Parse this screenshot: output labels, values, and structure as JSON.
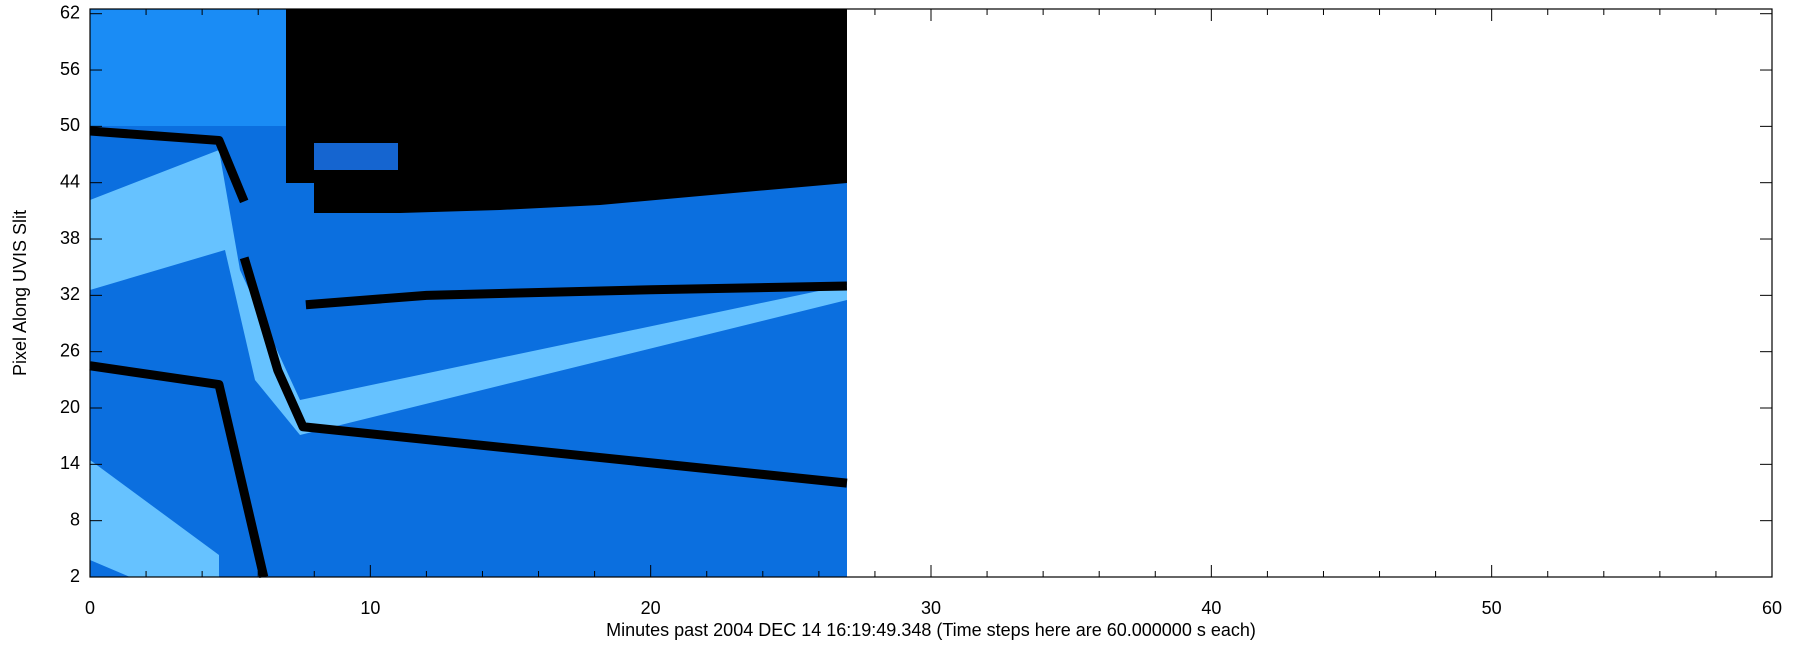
{
  "chart_data": {
    "type": "line",
    "xlabel": "Minutes past 2004 DEC 14 16:19:49.348 (Time steps here are 60.000000 s each)",
    "ylabel": "Pixel Along UVIS Slit",
    "xlim": [
      0,
      60
    ],
    "xticks": [
      0,
      10,
      20,
      30,
      40,
      50,
      60
    ],
    "ylim": [
      2,
      62.5
    ],
    "yticks": [
      2,
      8,
      14,
      20,
      26,
      32,
      38,
      44,
      50,
      56,
      62
    ],
    "series": [
      {
        "color": "#000000",
        "x": [
          0,
          4.6,
          5.5
        ],
        "y": [
          49.5,
          48.5,
          42
        ]
      },
      {
        "color": "#000000",
        "x": [
          0,
          4.6,
          6.2
        ],
        "y": [
          24.5,
          22.5,
          2
        ]
      },
      {
        "color": "#000000",
        "x": [
          5.5,
          6.7,
          7.6,
          27
        ],
        "y": [
          36,
          24,
          18,
          12
        ]
      },
      {
        "color": "#000000",
        "x": [
          7.7,
          12,
          20,
          27
        ],
        "y": [
          31,
          32,
          32.6,
          33
        ]
      }
    ]
  }
}
